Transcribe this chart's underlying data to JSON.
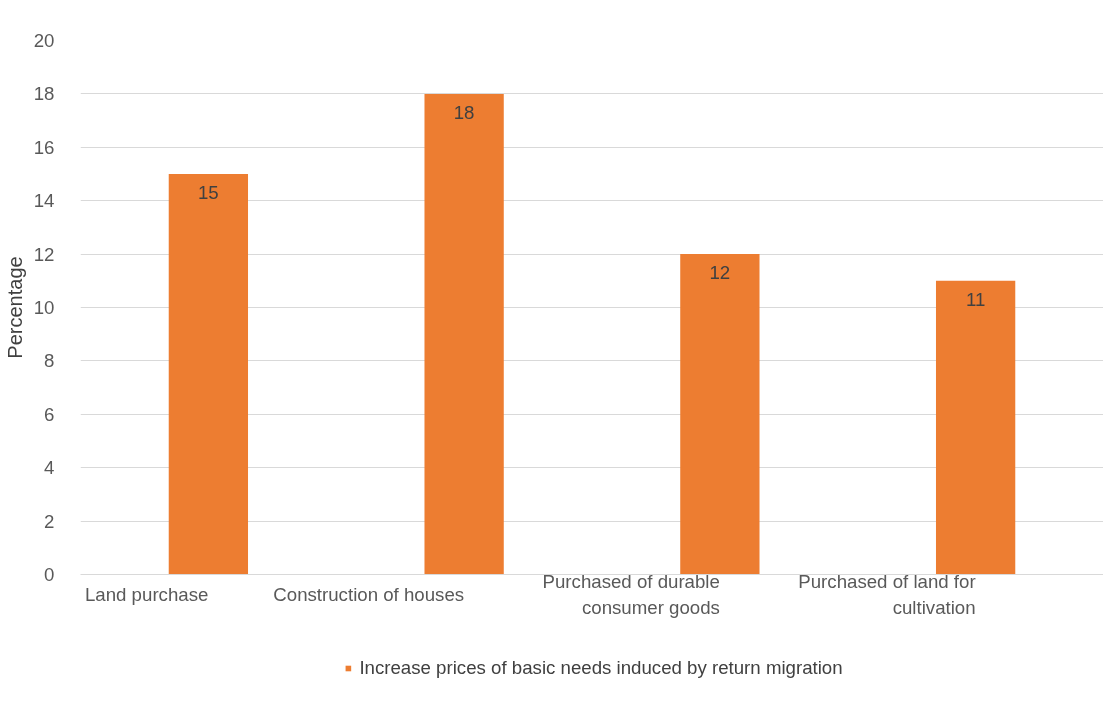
{
  "chart_data": {
    "type": "bar",
    "ylabel": "Percentage",
    "categories": [
      "Land purchase",
      "Construction of houses",
      "Purchased of durable consumer goods",
      "Purchased of land for cultivation"
    ],
    "series": [
      {
        "name": "Increase prices of basic needs induced by return migration",
        "color": "#ed7d31",
        "values": [
          15,
          18,
          12,
          11
        ]
      }
    ],
    "ylim": [
      0,
      20
    ],
    "yticks": [
      0,
      2,
      4,
      6,
      8,
      10,
      12,
      14,
      16,
      18,
      20
    ],
    "grid": "y",
    "legend": "bottom",
    "data_labels": true
  }
}
